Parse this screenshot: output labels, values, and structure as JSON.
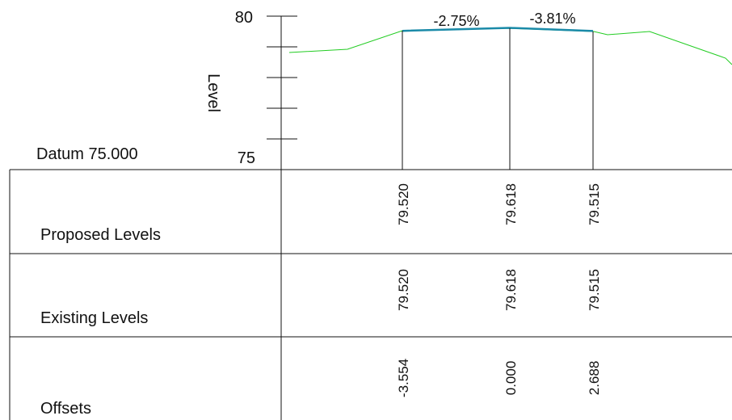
{
  "axis": {
    "label": "Level",
    "top_tick": "80",
    "bottom_tick": "75",
    "datum": "Datum 75.000",
    "range": [
      75,
      80
    ]
  },
  "grades": {
    "left": "-2.75%",
    "right": "-3.81%"
  },
  "rows": [
    {
      "label": "Proposed Levels",
      "values": [
        "79.520",
        "79.618",
        "79.515"
      ]
    },
    {
      "label": "Existing Levels",
      "values": [
        "79.520",
        "79.618",
        "79.515"
      ]
    },
    {
      "label": "Offsets",
      "values": [
        "-3.554",
        "0.000",
        "2.688"
      ]
    }
  ],
  "chart_data": {
    "type": "line",
    "x": [
      -3.554,
      0.0,
      2.688
    ],
    "series": [
      {
        "values": [
          79.52,
          79.618,
          79.515
        ]
      }
    ],
    "ylim": [
      75,
      80
    ],
    "ylabel": "Level"
  },
  "colors": {
    "existing_ground": "#22cc22",
    "proposed_line": "#1a8aa8",
    "ink": "#111111"
  }
}
